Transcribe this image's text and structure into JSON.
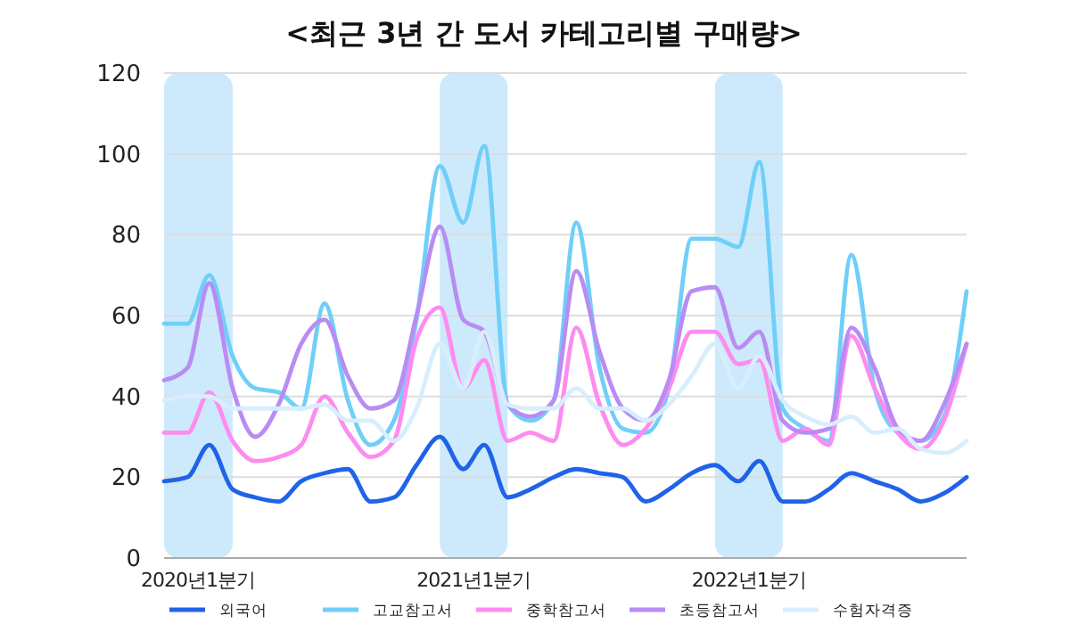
{
  "chart_data": {
    "type": "line",
    "title": "<최근 3년 간 도서 카테고리별 구매량>",
    "x": [
      "2020-01",
      "2020-02",
      "2020-03",
      "2020-04",
      "2020-05",
      "2020-06",
      "2020-07",
      "2020-08",
      "2020-09",
      "2020-10",
      "2020-11",
      "2020-12",
      "2021-01",
      "2021-02",
      "2021-03",
      "2021-04",
      "2021-05",
      "2021-06",
      "2021-07",
      "2021-08",
      "2021-09",
      "2021-10",
      "2021-11",
      "2021-12",
      "2022-01",
      "2022-02",
      "2022-03",
      "2022-04",
      "2022-05",
      "2022-06",
      "2022-07",
      "2022-08",
      "2022-09",
      "2022-10",
      "2022-11",
      "2022-12"
    ],
    "xlim": [
      "2020-01",
      "2022-12"
    ],
    "xticks": [
      {
        "value": "2020-02-15",
        "label": "2020년1분기"
      },
      {
        "value": "2021-02-15",
        "label": "2021년1분기"
      },
      {
        "value": "2022-02-15",
        "label": "2022년1분기"
      }
    ],
    "ylim": [
      0,
      120
    ],
    "yticks": [
      0,
      20,
      40,
      60,
      80,
      100,
      120
    ],
    "grid": "y",
    "legend": "bottom",
    "marker": "none",
    "line_style": "solid",
    "bands": [
      {
        "axis": "x",
        "from": "2020-01",
        "to": "2020-04",
        "color": "#cdeafc"
      },
      {
        "axis": "x",
        "from": "2021-01",
        "to": "2021-04",
        "color": "#cdeafc"
      },
      {
        "axis": "x",
        "from": "2022-01",
        "to": "2022-04",
        "color": "#cdeafc"
      }
    ],
    "series": [
      {
        "name": "외국어",
        "color": "#1f63e8",
        "values": [
          19,
          20,
          28,
          17,
          15,
          14,
          19,
          21,
          22,
          14,
          15,
          23,
          30,
          22,
          28,
          15,
          17,
          20,
          22,
          21,
          20,
          14,
          17,
          21,
          23,
          19,
          24,
          14,
          14,
          17,
          21,
          19,
          17,
          14,
          16,
          20
        ]
      },
      {
        "name": "고교참고서",
        "color": "#6fcff8",
        "values": [
          58,
          58,
          70,
          50,
          42,
          41,
          37,
          63,
          39,
          28,
          34,
          59,
          97,
          83,
          102,
          38,
          34,
          39,
          83,
          47,
          32,
          31,
          42,
          79,
          79,
          77,
          98,
          37,
          32,
          29,
          75,
          42,
          31,
          29,
          35,
          66
        ]
      },
      {
        "name": "중학참고서",
        "color": "#fd8cf0",
        "values": [
          31,
          31,
          41,
          29,
          24,
          25,
          28,
          40,
          31,
          25,
          29,
          54,
          62,
          42,
          49,
          29,
          31,
          29,
          57,
          38,
          28,
          32,
          42,
          56,
          56,
          48,
          49,
          29,
          32,
          28,
          55,
          42,
          31,
          27,
          34,
          53
        ]
      },
      {
        "name": "초등참고서",
        "color": "#b98cf4",
        "values": [
          44,
          47,
          68,
          42,
          30,
          38,
          53,
          59,
          45,
          37,
          39,
          60,
          82,
          59,
          56,
          38,
          35,
          39,
          71,
          51,
          37,
          34,
          44,
          66,
          67,
          52,
          56,
          34,
          31,
          32,
          57,
          47,
          32,
          29,
          38,
          53
        ]
      },
      {
        "name": "수험자격증",
        "color": "#d8eefc",
        "values": [
          39,
          40,
          40,
          37,
          37,
          37,
          37,
          38,
          34,
          34,
          29,
          37,
          53,
          42,
          56,
          38,
          37,
          37,
          42,
          37,
          37,
          34,
          38,
          45,
          53,
          42,
          50,
          39,
          35,
          33,
          35,
          31,
          32,
          27,
          26,
          29
        ]
      }
    ]
  }
}
